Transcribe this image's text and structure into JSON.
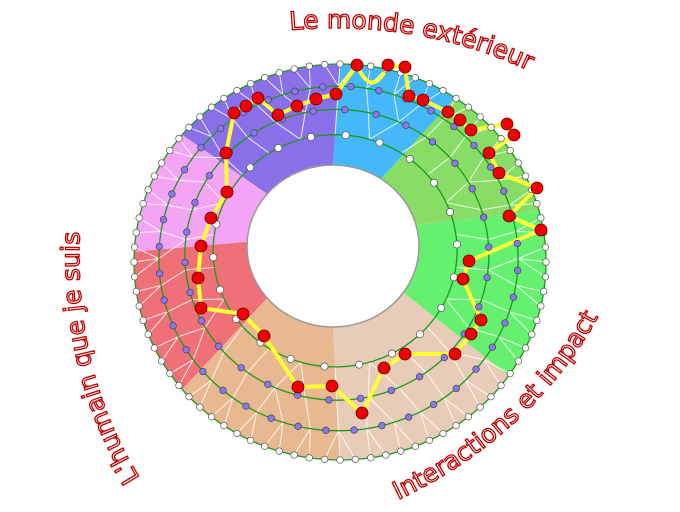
{
  "labels": {
    "top": "Le monde extérieur",
    "left": "L'humain que je suis",
    "right": "Interactions et impact"
  },
  "colors": {
    "label_stroke": "#c00000",
    "ring_line": "#1a9a1a",
    "path": "#ffff33",
    "key_node": "#ee0000",
    "inner_node": "#8877ee",
    "edge_node": "#ffffff",
    "sectors": [
      "#44b8f8",
      "#88dd66",
      "#66f070",
      "#e8ccb8",
      "#e8b890",
      "#f07078",
      "#f4a4f4",
      "#8a70e8"
    ]
  }
}
